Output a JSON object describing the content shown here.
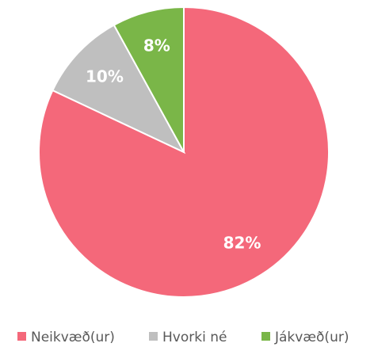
{
  "chart_data": {
    "type": "pie",
    "categories": [
      "Neikvæð(ur)",
      "Hvorki né",
      "Jákvæð(ur)"
    ],
    "values": [
      82,
      10,
      8
    ],
    "value_labels": [
      "82%",
      "10%",
      "8%"
    ],
    "colors": [
      "#f4687a",
      "#bfbfbf",
      "#7ab648"
    ],
    "legend": "bottom"
  }
}
